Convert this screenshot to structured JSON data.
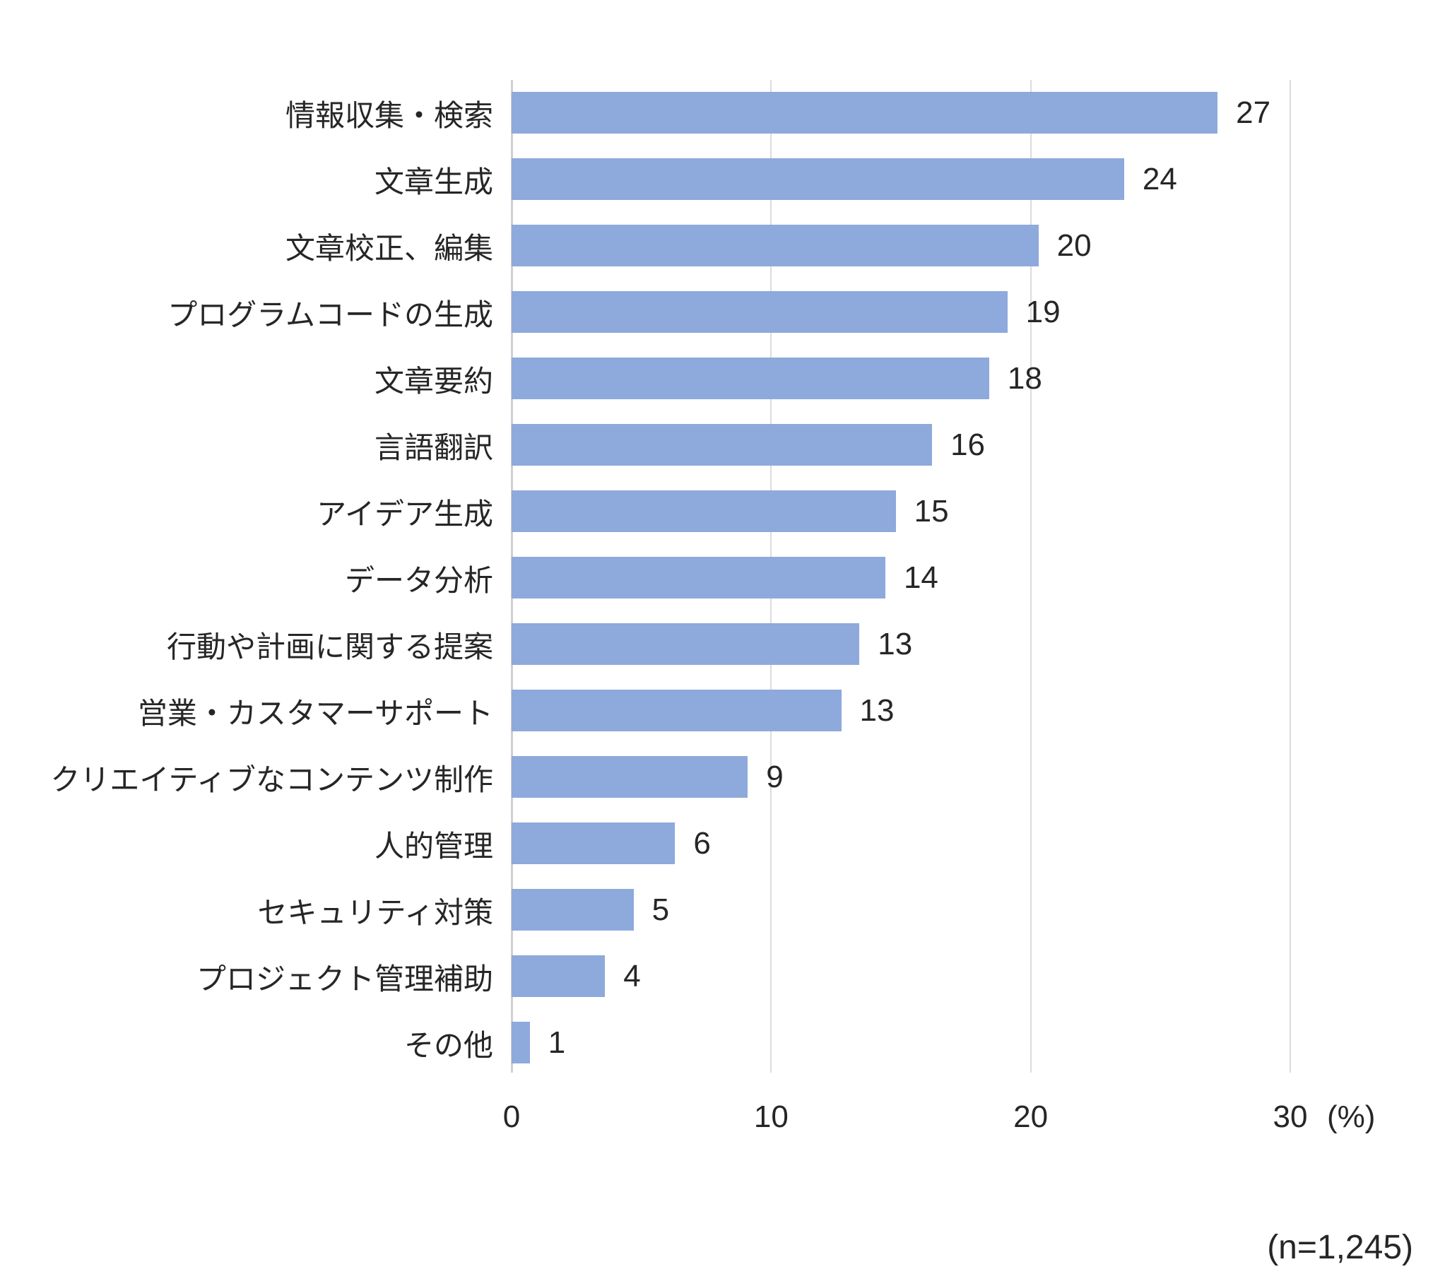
{
  "chart_data": {
    "type": "bar",
    "orientation": "horizontal",
    "title": "",
    "categories": [
      "情報収集・検索",
      "文章生成",
      "文章校正、編集",
      "プログラムコードの生成",
      "文章要約",
      "言語翻訳",
      "アイデア生成",
      "データ分析",
      "行動や計画に関する提案",
      "営業・カスタマーサポート",
      "クリエイティブなコンテンツ制作",
      "人的管理",
      "セキュリティ対策",
      "プロジェクト管理補助",
      "その他"
    ],
    "values": [
      27,
      24,
      20,
      19,
      18,
      16,
      15,
      14,
      13,
      13,
      9,
      6,
      5,
      4,
      1
    ],
    "bar_lengths_pct": [
      27.2,
      23.6,
      20.3,
      19.1,
      18.4,
      16.2,
      14.8,
      14.4,
      13.4,
      12.7,
      9.1,
      6.3,
      4.7,
      3.6,
      0.7
    ],
    "xlabel": "",
    "ylabel": "",
    "x_axis": {
      "ticks": [
        "0",
        "10",
        "20",
        "30"
      ],
      "tick_values": [
        0,
        10,
        20,
        30
      ],
      "max": 30,
      "unit_label": "(%)"
    },
    "annotation": "(n=1,245)",
    "grid": true,
    "legend": false,
    "colors": {
      "bar": "#8EA9DB",
      "gridline": "#DCDCDC",
      "axis_line": "#D0D0D0",
      "text": "#262626",
      "background": "#FFFFFF"
    }
  }
}
